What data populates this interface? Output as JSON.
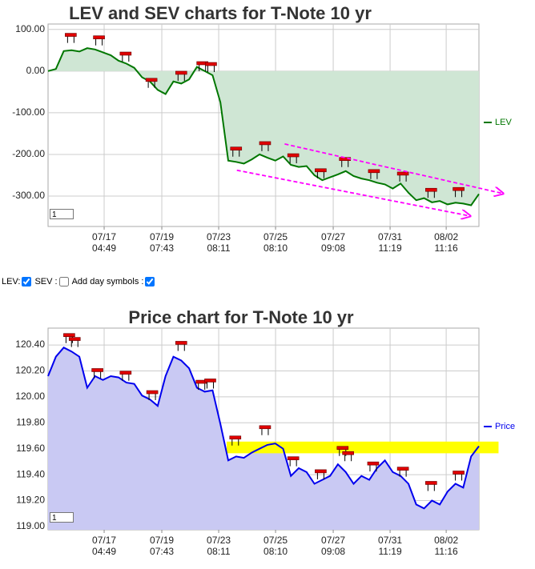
{
  "chart_data": [
    {
      "type": "area",
      "title": "LEV and SEV charts for T-Note 10 yr",
      "x": [
        0,
        1,
        2,
        3,
        4,
        5,
        6,
        7,
        8,
        9,
        10,
        11,
        12,
        13,
        14,
        15,
        16,
        17,
        18,
        19,
        20,
        21,
        22,
        23,
        24,
        25,
        26,
        27,
        28,
        29,
        30,
        31,
        32,
        33,
        34,
        35,
        36,
        37,
        38,
        39,
        40,
        41,
        42,
        43,
        44,
        45,
        46,
        47,
        48,
        49,
        50,
        51,
        52,
        53,
        54,
        55
      ],
      "series": [
        {
          "name": "LEV",
          "color": "#007700",
          "fill": "#cfe6d4",
          "values": [
            0,
            5,
            48,
            50,
            47,
            55,
            52,
            45,
            38,
            25,
            18,
            8,
            -15,
            -25,
            -45,
            -55,
            -25,
            -30,
            -20,
            10,
            0,
            -10,
            -75,
            -215,
            -218,
            -222,
            -212,
            -200,
            -208,
            -215,
            -205,
            -225,
            -230,
            -228,
            -250,
            -262,
            -255,
            -248,
            -240,
            -252,
            -258,
            -262,
            -268,
            -272,
            -282,
            -270,
            -292,
            -310,
            -305,
            -315,
            -312,
            -320,
            -316,
            -318,
            -322,
            -295
          ]
        }
      ],
      "area_baseline": 0,
      "xlim": [
        0,
        55
      ],
      "xticks": [
        {
          "value": 7.16,
          "label": "07/17 04:49"
        },
        {
          "value": 14.52,
          "label": "07/19 07:43"
        },
        {
          "value": 21.78,
          "label": "07/23 08:11"
        },
        {
          "value": 29.04,
          "label": "07/25 08:10"
        },
        {
          "value": 36.4,
          "label": "07/27 09:08"
        },
        {
          "value": 43.66,
          "label": "07/31 11:19"
        },
        {
          "value": 50.82,
          "label": "08/02 11:16"
        }
      ],
      "ylim": [
        -373,
        113
      ],
      "yticks": [
        {
          "value": 100,
          "label": "100.00"
        },
        {
          "value": 0,
          "label": "0.00"
        },
        {
          "value": -100,
          "label": "-100.00"
        },
        {
          "value": -200,
          "label": "-200.00"
        },
        {
          "value": -300,
          "label": "-300.00"
        }
      ],
      "grid": true,
      "symbols": [
        {
          "x": 2.9,
          "y": 85
        },
        {
          "x": 6.5,
          "y": 79
        },
        {
          "x": 9.9,
          "y": 40
        },
        {
          "x": 13.2,
          "y": -23
        },
        {
          "x": 17.0,
          "y": -6
        },
        {
          "x": 19.7,
          "y": 17
        },
        {
          "x": 20.8,
          "y": 15
        },
        {
          "x": 24.0,
          "y": -188
        },
        {
          "x": 27.7,
          "y": -175
        },
        {
          "x": 31.3,
          "y": -204
        },
        {
          "x": 34.8,
          "y": -240
        },
        {
          "x": 37.9,
          "y": -213
        },
        {
          "x": 41.6,
          "y": -242
        },
        {
          "x": 45.3,
          "y": -248
        },
        {
          "x": 48.9,
          "y": -287
        },
        {
          "x": 52.4,
          "y": -285
        }
      ],
      "trendlines": [
        {
          "x": [
            30.2,
            58.1
          ],
          "y": [
            -175,
            -294
          ],
          "color": "#ff00ff"
        },
        {
          "x": [
            24.1,
            53.9
          ],
          "y": [
            -238,
            -348
          ],
          "color": "#ff00ff"
        }
      ],
      "input_value": "1"
    },
    {
      "type": "area",
      "title": "Price chart for T-Note 10 yr",
      "x": [
        0,
        1,
        2,
        3,
        4,
        5,
        6,
        7,
        8,
        9,
        10,
        11,
        12,
        13,
        14,
        15,
        16,
        17,
        18,
        19,
        20,
        21,
        22,
        23,
        24,
        25,
        26,
        27,
        28,
        29,
        30,
        31,
        32,
        33,
        34,
        35,
        36,
        37,
        38,
        39,
        40,
        41,
        42,
        43,
        44,
        45,
        46,
        47,
        48,
        49,
        50,
        51,
        52,
        53,
        54,
        55
      ],
      "series": [
        {
          "name": "Price",
          "color": "#0000ee",
          "fill": "#c9c9f3",
          "values": [
            120.16,
            120.31,
            120.38,
            120.35,
            120.31,
            120.07,
            120.16,
            120.13,
            120.16,
            120.15,
            120.11,
            120.1,
            120.01,
            119.98,
            119.93,
            120.16,
            120.31,
            120.28,
            120.22,
            120.07,
            120.04,
            120.05,
            119.79,
            119.51,
            119.54,
            119.53,
            119.57,
            119.6,
            119.63,
            119.64,
            119.6,
            119.39,
            119.45,
            119.42,
            119.33,
            119.36,
            119.39,
            119.48,
            119.42,
            119.33,
            119.39,
            119.36,
            119.45,
            119.51,
            119.42,
            119.39,
            119.33,
            119.17,
            119.14,
            119.2,
            119.17,
            119.27,
            119.33,
            119.3,
            119.54,
            119.62
          ]
        }
      ],
      "xlim": [
        0,
        55
      ],
      "xticks": [
        {
          "value": 7.16,
          "label": "07/17 04:49"
        },
        {
          "value": 14.52,
          "label": "07/19 07:43"
        },
        {
          "value": 21.78,
          "label": "07/23 08:11"
        },
        {
          "value": 29.04,
          "label": "07/25 08:10"
        },
        {
          "value": 36.4,
          "label": "07/27 09:08"
        },
        {
          "value": 43.66,
          "label": "07/31 11:19"
        },
        {
          "value": 50.82,
          "label": "08/02 11:16"
        }
      ],
      "ylim": [
        118.975,
        120.53
      ],
      "yticks": [
        {
          "value": 120.4,
          "label": "120.40"
        },
        {
          "value": 120.2,
          "label": "120.20"
        },
        {
          "value": 120,
          "label": "120.00"
        },
        {
          "value": 119.8,
          "label": "119.80"
        },
        {
          "value": 119.6,
          "label": "119.60"
        },
        {
          "value": 119.4,
          "label": "119.40"
        },
        {
          "value": 119.2,
          "label": "119.20"
        },
        {
          "value": 119,
          "label": "119.00"
        }
      ],
      "grid": true,
      "band": {
        "from": 119.565,
        "to": 119.655,
        "x": [
          22.8,
          57.5
        ],
        "color": "#ffff00"
      },
      "symbols": [
        {
          "x": 2.7,
          "y": 120.47
        },
        {
          "x": 3.4,
          "y": 120.44
        },
        {
          "x": 6.3,
          "y": 120.2
        },
        {
          "x": 9.9,
          "y": 120.18
        },
        {
          "x": 13.3,
          "y": 120.03
        },
        {
          "x": 17.0,
          "y": 120.41
        },
        {
          "x": 19.6,
          "y": 120.11
        },
        {
          "x": 20.7,
          "y": 120.12
        },
        {
          "x": 23.9,
          "y": 119.68
        },
        {
          "x": 27.7,
          "y": 119.76
        },
        {
          "x": 31.3,
          "y": 119.52
        },
        {
          "x": 34.8,
          "y": 119.42
        },
        {
          "x": 37.6,
          "y": 119.6
        },
        {
          "x": 38.3,
          "y": 119.56
        },
        {
          "x": 41.5,
          "y": 119.48
        },
        {
          "x": 45.3,
          "y": 119.44
        },
        {
          "x": 48.9,
          "y": 119.33
        },
        {
          "x": 52.4,
          "y": 119.41
        }
      ],
      "input_value": "1"
    }
  ],
  "controls": [
    {
      "label": "LEV:",
      "checked": true
    },
    {
      "label": "SEV :",
      "checked": false
    },
    {
      "label": "Add day symbols :",
      "checked": true
    }
  ]
}
